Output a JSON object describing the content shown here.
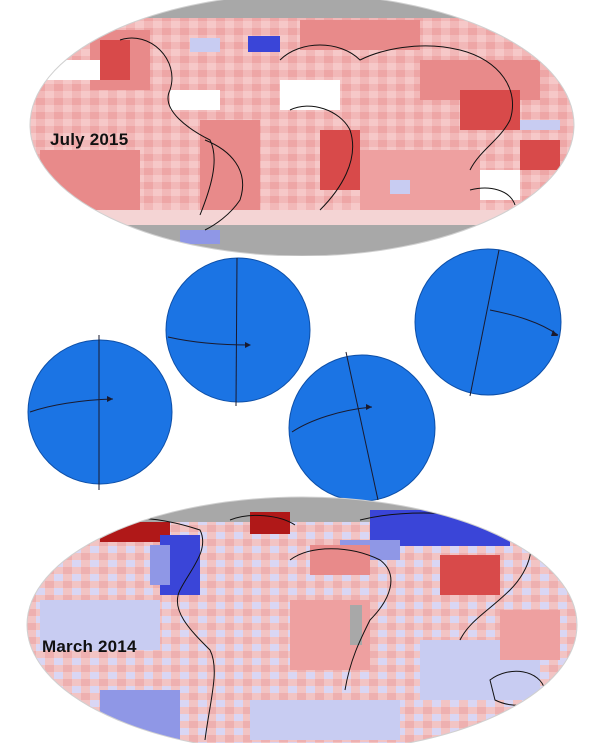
{
  "maps": {
    "top": {
      "label": "July 2015"
    },
    "bottom": {
      "label": "March 2014"
    }
  },
  "colors": {
    "background": "#ffffff",
    "ocean_neutral": "#f4d4d4",
    "warm_light": "#f2b8b8",
    "warm": "#e88a8a",
    "warm_strong": "#d84a4a",
    "warm_extreme": "#b01818",
    "cool_light": "#c8ccf2",
    "cool": "#8f97e6",
    "cool_strong": "#3a45d8",
    "no_data": "#a8a8a8",
    "globe_fill": "#1b74e4",
    "globe_outline": "#0d4fa8",
    "axis_line": "#1a1a2e"
  },
  "globes": [
    {
      "name": "globe-1"
    },
    {
      "name": "globe-2"
    },
    {
      "name": "globe-3"
    },
    {
      "name": "globe-4"
    }
  ]
}
